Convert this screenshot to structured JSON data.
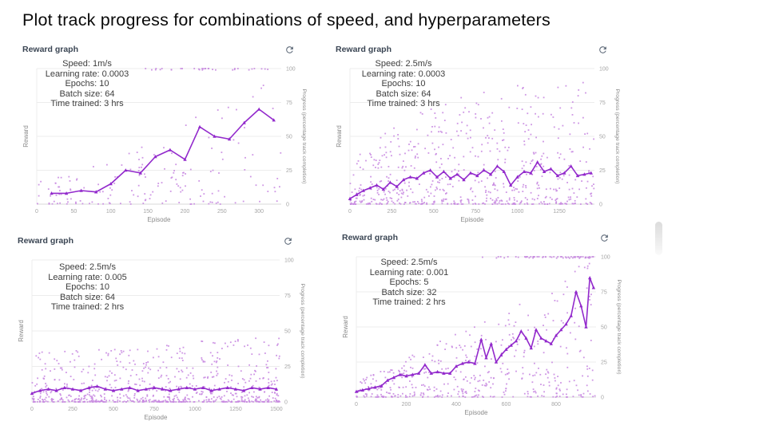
{
  "page": {
    "title": "Plot track progress for combinations of speed, and hyperparameters"
  },
  "panel_header": {
    "title": "Reward graph",
    "refresh_icon": "refresh-icon"
  },
  "colors": {
    "line": "#9229cc",
    "scatter": "#c788e0",
    "grid": "#ececec",
    "zero_line": "#dadada",
    "tick_text": "#a5a5a5",
    "axis_title_text": "#8a8a8a",
    "header_text": "#3b4654",
    "icon": "#5f6b7a"
  },
  "chart_data": [
    {
      "type": "scatter",
      "title": "Reward graph",
      "xlabel": "Episode",
      "ylabel_left": "Reward",
      "ylabel_right": "Progress (percentage track completion)",
      "xlim": [
        0,
        330
      ],
      "ylim": [
        0,
        100
      ],
      "x_ticks": [
        0,
        50,
        100,
        150,
        200,
        250,
        300
      ],
      "y_ticks": [
        0,
        25,
        50,
        75,
        100
      ],
      "grid": true,
      "legend": "none",
      "annotation": [
        "Speed: 1m/s",
        "Learning rate: 0.0003",
        "Epochs: 10",
        "Batch size: 64",
        "Time trained: 3 hrs"
      ],
      "line": {
        "name": "average-reward-line",
        "x": [
          20,
          40,
          60,
          80,
          100,
          120,
          140,
          160,
          180,
          200,
          220,
          240,
          260,
          280,
          300,
          320
        ],
        "y": [
          8,
          8,
          10,
          9,
          15,
          25,
          23,
          35,
          40,
          33,
          57,
          50,
          48,
          60,
          70,
          62
        ]
      },
      "scatter": {
        "name": "episode-reward-points",
        "seed": 11,
        "count": 165,
        "power": 1.9,
        "base": 18,
        "grow": 78,
        "grow_exp": 1.2,
        "top_band": {
          "count": 32,
          "x_range": [
            140,
            325
          ],
          "x_bias": 0.8
        }
      }
    },
    {
      "type": "scatter",
      "title": "Reward graph",
      "xlabel": "Episode",
      "ylabel_left": "Reward",
      "ylabel_right": "Progress (percentage track completion)",
      "xlim": [
        0,
        1460
      ],
      "ylim": [
        0,
        100
      ],
      "x_ticks": [
        0,
        250,
        500,
        750,
        1000,
        1250
      ],
      "y_ticks": [
        0,
        25,
        50,
        75,
        100
      ],
      "grid": true,
      "legend": "none",
      "annotation": [
        "Speed: 2.5m/s",
        "Learning rate: 0.0003",
        "Epochs: 10",
        "Batch size: 64",
        "Time trained: 3 hrs"
      ],
      "line": {
        "name": "average-reward-line",
        "x": [
          0,
          40,
          80,
          120,
          160,
          200,
          240,
          280,
          320,
          360,
          400,
          440,
          480,
          520,
          560,
          600,
          640,
          680,
          720,
          760,
          800,
          840,
          880,
          920,
          960,
          1000,
          1040,
          1080,
          1120,
          1160,
          1200,
          1240,
          1280,
          1320,
          1360,
          1400,
          1440
        ],
        "y": [
          4,
          7,
          10,
          12,
          14,
          11,
          16,
          13,
          18,
          20,
          19,
          23,
          25,
          20,
          24,
          19,
          22,
          18,
          23,
          21,
          25,
          22,
          28,
          24,
          14,
          20,
          24,
          23,
          31,
          24,
          26,
          21,
          23,
          28,
          21,
          22,
          23
        ]
      },
      "scatter": {
        "name": "episode-reward-points",
        "seed": 22,
        "count": 620,
        "power": 2.5,
        "base": 8,
        "grow": 90,
        "grow_exp": 0.3
      }
    },
    {
      "type": "scatter",
      "title": "Reward graph",
      "xlabel": "Episode",
      "ylabel_left": "Reward",
      "ylabel_right": "Progress (percentage track completion)",
      "xlim": [
        0,
        1520
      ],
      "ylim": [
        0,
        100
      ],
      "x_ticks": [
        0,
        250,
        500,
        750,
        1000,
        1250,
        1500
      ],
      "y_ticks": [
        0,
        25,
        50,
        75,
        100
      ],
      "grid": true,
      "legend": "none",
      "annotation": [
        "Speed: 2.5m/s",
        "Learning rate: 0.005",
        "Epochs: 10",
        "Batch size: 64",
        "Time trained: 2 hrs"
      ],
      "line": {
        "name": "average-reward-line",
        "x": [
          0,
          50,
          100,
          150,
          200,
          250,
          300,
          350,
          400,
          450,
          500,
          550,
          600,
          650,
          700,
          750,
          800,
          850,
          900,
          950,
          1000,
          1050,
          1100,
          1150,
          1200,
          1250,
          1300,
          1350,
          1400,
          1450,
          1500
        ],
        "y": [
          6,
          8,
          9,
          8,
          10,
          9,
          8,
          10,
          11,
          9,
          8,
          9,
          10,
          8,
          9,
          10,
          9,
          8,
          9,
          10,
          9,
          10,
          8,
          9,
          10,
          9,
          8,
          10,
          9,
          10,
          9
        ]
      },
      "scatter": {
        "name": "episode-reward-points",
        "seed": 33,
        "count": 720,
        "power": 3.1,
        "base": 36,
        "grow": 10,
        "grow_exp": 1.0
      }
    },
    {
      "type": "scatter",
      "title": "Reward graph",
      "xlabel": "Episode",
      "ylabel_left": "Reward",
      "ylabel_right": "Progress (percentage track completion)",
      "xlim": [
        0,
        960
      ],
      "ylim": [
        0,
        100
      ],
      "x_ticks": [
        0,
        200,
        400,
        600,
        800
      ],
      "y_ticks": [
        0,
        25,
        50,
        75,
        100
      ],
      "grid": true,
      "legend": "none",
      "annotation": [
        "Speed: 2.5m/s",
        "Learning rate: 0.001",
        "Epochs: 5",
        "Batch size: 32",
        "Time trained: 2 hrs"
      ],
      "line": {
        "name": "average-reward-line",
        "x": [
          0,
          25,
          50,
          75,
          100,
          125,
          150,
          175,
          200,
          225,
          250,
          275,
          300,
          325,
          350,
          375,
          400,
          425,
          450,
          475,
          500,
          520,
          540,
          560,
          580,
          600,
          620,
          640,
          660,
          680,
          700,
          720,
          740,
          760,
          780,
          800,
          820,
          840,
          860,
          880,
          900,
          920,
          935,
          950
        ],
        "y": [
          4,
          5,
          6,
          7,
          8,
          12,
          14,
          16,
          15,
          16,
          17,
          23,
          17,
          18,
          17,
          17,
          22,
          24,
          25,
          24,
          41,
          28,
          38,
          25,
          30,
          34,
          37,
          40,
          47,
          42,
          35,
          48,
          42,
          40,
          38,
          44,
          48,
          52,
          58,
          75,
          65,
          50,
          85,
          78
        ]
      },
      "scatter": {
        "name": "episode-reward-points",
        "seed": 44,
        "count": 430,
        "power": 1.9,
        "base": 12,
        "grow": 88,
        "grow_exp": 1.1,
        "top_band": {
          "count": 60,
          "x_range": [
            450,
            950
          ],
          "x_bias": 0.55
        }
      }
    }
  ]
}
